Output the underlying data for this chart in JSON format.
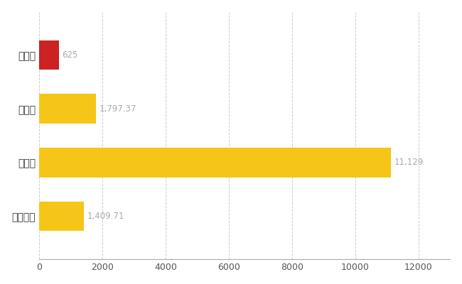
{
  "categories": [
    "輪島市",
    "県平均",
    "県最大",
    "全国平均"
  ],
  "values": [
    625,
    1797.37,
    11129,
    1409.71
  ],
  "bar_colors": [
    "#cc2222",
    "#f5c518",
    "#f5c518",
    "#f5c518"
  ],
  "value_labels": [
    "625",
    "1,797.37",
    "11,129",
    "1,409.71"
  ],
  "xlim": [
    0,
    13000
  ],
  "xticks": [
    0,
    2000,
    4000,
    6000,
    8000,
    10000,
    12000
  ],
  "background_color": "#ffffff",
  "grid_color": "#cccccc",
  "label_color": "#aaaaaa",
  "bar_height": 0.55
}
